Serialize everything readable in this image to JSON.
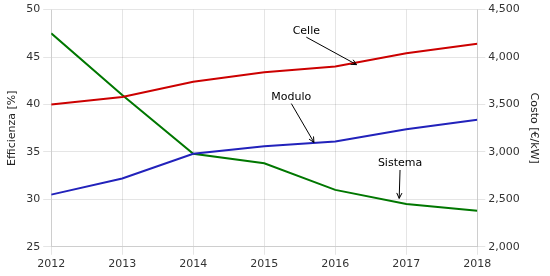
{
  "chart_data": {
    "type": "line",
    "x": [
      2012,
      2013,
      2014,
      2015,
      2016,
      2017,
      2018
    ],
    "series": [
      {
        "color": "#cc0000",
        "values": [
          40.0,
          40.8,
          42.4,
          43.4,
          44.0,
          45.4,
          46.4
        ]
      },
      {
        "color": "#2222bb",
        "values": [
          30.5,
          32.2,
          34.8,
          35.6,
          36.1,
          37.4,
          38.4
        ]
      },
      {
        "color": "#007700",
        "values": [
          47.5,
          41.0,
          34.8,
          33.8,
          31.0,
          29.5,
          28.8
        ]
      }
    ],
    "ylabel": "Efficienza [%]",
    "y2label": "Costo [€/kW]",
    "xlim": [
      2012,
      2018
    ],
    "xticks": [
      2012,
      2013,
      2014,
      2015,
      2016,
      2017,
      2018
    ],
    "ylim": [
      25,
      50
    ],
    "yticks": [
      25,
      30,
      35,
      40,
      45,
      50
    ],
    "y2lim": [
      2000,
      4500
    ],
    "y2ticks": [
      {
        "value": 2000,
        "label": "2,000"
      },
      {
        "value": 2500,
        "label": "2,500"
      },
      {
        "value": 3000,
        "label": "3,000"
      },
      {
        "value": 3500,
        "label": "3,500"
      },
      {
        "value": 4000,
        "label": "4,000"
      },
      {
        "value": 4500,
        "label": "4,500"
      }
    ],
    "grid": true,
    "annotations": [
      {
        "text": "Celle",
        "xy": [
          2016.3,
          44.2
        ],
        "xytext": [
          2015.4,
          47.2
        ]
      },
      {
        "text": "Modulo",
        "xy": [
          2015.7,
          36.0
        ],
        "xytext": [
          2015.1,
          40.2
        ]
      },
      {
        "text": "Sistema",
        "xy": [
          2016.9,
          30.1
        ],
        "xytext": [
          2016.6,
          33.2
        ]
      }
    ]
  }
}
